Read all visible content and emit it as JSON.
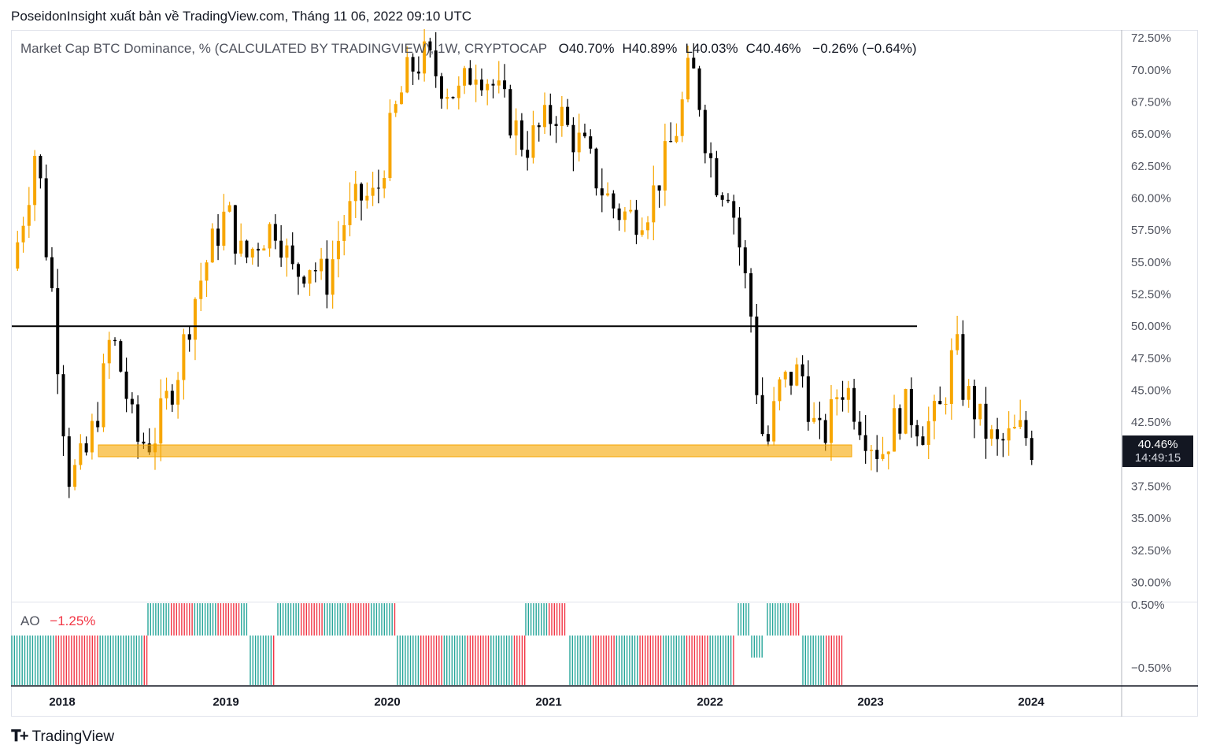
{
  "header": {
    "publisher_line": "PoseidonInsight xuất bản về TradingView.com, Tháng 11 06, 2022 09:10 UTC"
  },
  "legend": {
    "symbol": "Market Cap BTC Dominance, % (CALCULATED BY TRADINGVIEW), 1W, CRYPTOCAP",
    "ohlc": [
      {
        "label": "O",
        "value": "40.70%"
      },
      {
        "label": "H",
        "value": "40.89%"
      },
      {
        "label": "L",
        "value": "40.03%"
      },
      {
        "label": "C",
        "value": "40.46%"
      }
    ],
    "change": "−0.26% (−0.64%)"
  },
  "ao_indicator": {
    "label": "AO",
    "value": "−1.25%"
  },
  "price_tag": {
    "price": "40.46%",
    "countdown": "14:49:15"
  },
  "logo": {
    "text": "TradingView"
  },
  "colors": {
    "up": "#f7a600",
    "down": "#000000",
    "support_zone": "#f7a600",
    "ao_up": "#26a69a",
    "ao_down": "#f23645"
  },
  "chart_data": {
    "type": "candlestick",
    "timeframe": "1W",
    "price_axis": {
      "ticks": [
        "72.50%",
        "70.00%",
        "67.50%",
        "65.00%",
        "62.50%",
        "60.00%",
        "57.50%",
        "55.00%",
        "52.50%",
        "50.00%",
        "47.50%",
        "45.00%",
        "42.50%",
        "37.50%",
        "35.00%",
        "32.50%",
        "30.00%"
      ],
      "range": [
        28.5,
        73.0
      ]
    },
    "time_axis": {
      "labels": [
        "2018",
        "2019",
        "2020",
        "2021",
        "2022",
        "2023",
        "2024"
      ],
      "range": [
        2017.85,
        2024.55
      ]
    },
    "ao_axis": {
      "ticks": [
        "0.50%",
        "−0.50%"
      ]
    },
    "close_path": [
      [
        2017.85,
        54.5
      ],
      [
        2017.95,
        60.5
      ],
      [
        2018.0,
        64.5
      ],
      [
        2018.05,
        57.0
      ],
      [
        2018.1,
        52.0
      ],
      [
        2018.15,
        44.0
      ],
      [
        2018.2,
        38.0
      ],
      [
        2018.3,
        40.0
      ],
      [
        2018.38,
        44.0
      ],
      [
        2018.45,
        49.5
      ],
      [
        2018.52,
        46.0
      ],
      [
        2018.6,
        41.0
      ],
      [
        2018.7,
        41.0
      ],
      [
        2018.78,
        44.0
      ],
      [
        2018.85,
        46.5
      ],
      [
        2018.95,
        52.0
      ],
      [
        2019.05,
        56.0
      ],
      [
        2019.15,
        59.0
      ],
      [
        2019.25,
        55.0
      ],
      [
        2019.35,
        57.0
      ],
      [
        2019.45,
        58.0
      ],
      [
        2019.55,
        54.0
      ],
      [
        2019.65,
        55.0
      ],
      [
        2019.75,
        53.5
      ],
      [
        2019.85,
        58.0
      ],
      [
        2019.95,
        60.0
      ],
      [
        2020.05,
        60.0
      ],
      [
        2020.15,
        66.0
      ],
      [
        2020.25,
        70.0
      ],
      [
        2020.35,
        71.0
      ],
      [
        2020.45,
        69.0
      ],
      [
        2020.55,
        68.0
      ],
      [
        2020.65,
        70.5
      ],
      [
        2020.75,
        69.0
      ],
      [
        2020.85,
        66.5
      ],
      [
        2020.95,
        64.0
      ],
      [
        2021.05,
        65.5
      ],
      [
        2021.15,
        67.0
      ],
      [
        2021.22,
        65.0
      ],
      [
        2021.3,
        64.0
      ],
      [
        2021.4,
        61.0
      ],
      [
        2021.5,
        59.0
      ],
      [
        2021.6,
        58.5
      ],
      [
        2021.7,
        59.5
      ],
      [
        2021.8,
        63.0
      ],
      [
        2021.88,
        66.0
      ],
      [
        2021.95,
        70.5
      ],
      [
        2022.0,
        68.0
      ],
      [
        2022.05,
        64.0
      ],
      [
        2022.12,
        61.0
      ],
      [
        2022.18,
        61.0
      ],
      [
        2022.25,
        56.0
      ],
      [
        2022.32,
        50.5
      ],
      [
        2022.37,
        42.0
      ],
      [
        2022.42,
        41.0
      ],
      [
        2022.48,
        45.0
      ],
      [
        2022.55,
        46.0
      ],
      [
        2022.62,
        46.5
      ],
      [
        2022.68,
        43.0
      ],
      [
        2022.72,
        41.0
      ],
      [
        2022.78,
        42.0
      ],
      [
        2022.85,
        45.5
      ],
      [
        2022.9,
        45.0
      ],
      [
        2022.95,
        43.5
      ],
      [
        2023.0,
        42.0
      ],
      [
        2023.05,
        41.0
      ],
      [
        2023.1,
        40.0
      ],
      [
        2023.15,
        41.5
      ],
      [
        2023.2,
        43.0
      ],
      [
        2023.25,
        43.5
      ],
      [
        2023.3,
        43.0
      ],
      [
        2023.35,
        42.0
      ],
      [
        2023.4,
        42.5
      ],
      [
        2023.45,
        43.0
      ],
      [
        2023.5,
        45.5
      ],
      [
        2023.53,
        47.5
      ],
      [
        2023.56,
        48.0
      ],
      [
        2023.6,
        45.0
      ],
      [
        2023.65,
        44.0
      ],
      [
        2023.7,
        42.5
      ],
      [
        2023.75,
        41.5
      ],
      [
        2023.8,
        40.5
      ],
      [
        2023.85,
        41.0
      ],
      [
        2023.9,
        41.5
      ],
      [
        2023.95,
        41.8
      ],
      [
        2024.0,
        41.0
      ],
      [
        2024.02,
        40.46
      ]
    ],
    "annotations": [
      {
        "type": "horizontal_line",
        "price": 50.0,
        "from": 2017.85,
        "to": 2025.0
      },
      {
        "type": "support_zone",
        "price_from": 39.5,
        "price_to": 40.5,
        "from": 2018.4,
        "to": 2025.0
      }
    ],
    "ao_bars": [
      {
        "from": 2017.85,
        "to": 2018.45,
        "direction": "up-down-mix"
      },
      {
        "from": 2018.85,
        "to": 2019.15,
        "direction": "positive"
      },
      {
        "from": 2019.15,
        "to": 2019.3,
        "direction": "negative"
      },
      {
        "from": 2019.35,
        "to": 2019.85,
        "direction": "positive"
      },
      {
        "from": 2019.85,
        "to": 2020.3,
        "direction": "negative"
      },
      {
        "from": 2021.75,
        "to": 2021.95,
        "direction": "positive"
      },
      {
        "from": 2022.05,
        "to": 2022.9,
        "direction": "negative"
      },
      {
        "from": 2023.2,
        "to": 2023.6,
        "direction": "positive"
      },
      {
        "from": 2023.6,
        "to": 2024.0,
        "direction": "negative"
      }
    ]
  }
}
